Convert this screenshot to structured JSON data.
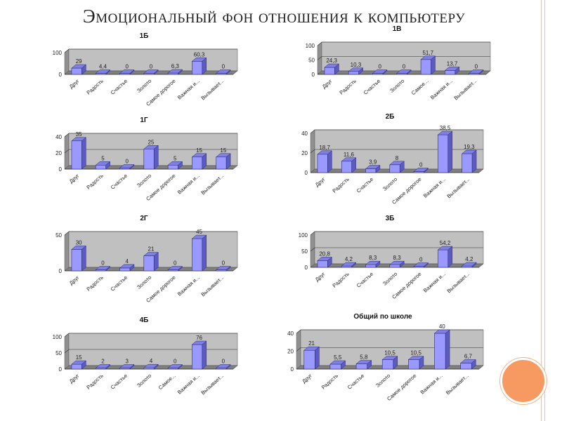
{
  "slide": {
    "title": "Эмоциональный фон отношения к компьютеру"
  },
  "colors": {
    "bar_front": "#9999ff",
    "bar_side": "#5c5cc0",
    "bar_edge": "#2a2a80",
    "wall": "#c0c0c0",
    "accent": "#f79a62"
  },
  "chart_data": [
    {
      "type": "bar",
      "title": "1Б",
      "categories": [
        "Друг",
        "Радость",
        "Счастье",
        "Золото",
        "Самое дорогое",
        "Важная и...",
        "Вызывает..."
      ],
      "values": [
        29,
        4.4,
        0,
        0,
        6.3,
        60.3,
        0
      ],
      "yticks": [
        0,
        100
      ],
      "ylim": [
        0,
        100
      ],
      "grid": true
    },
    {
      "type": "bar",
      "title": "1В",
      "categories": [
        "Друг",
        "Радость",
        "Счастье",
        "Золото",
        "Самое...",
        "Важная и...",
        "Вызывает..."
      ],
      "values": [
        24.3,
        10.3,
        0,
        0,
        51.7,
        13.7,
        0
      ],
      "yticks": [
        0,
        50,
        100
      ],
      "ylim": [
        0,
        100
      ],
      "grid": true
    },
    {
      "type": "bar",
      "title": "1Г",
      "categories": [
        "Друг",
        "Радость",
        "Счастье",
        "Золото",
        "Самое дорогое",
        "Важная и...",
        "Вызывает..."
      ],
      "values": [
        35,
        5,
        0,
        25,
        5,
        15,
        15
      ],
      "yticks": [
        0,
        20,
        40
      ],
      "ylim": [
        0,
        40
      ],
      "grid": true
    },
    {
      "type": "bar",
      "title": "2Б",
      "categories": [
        "Друг",
        "Радость",
        "Счастье",
        "Золото",
        "Самое дорогое",
        "Важная и...",
        "Вызывает..."
      ],
      "values": [
        18.7,
        11.6,
        3.9,
        8,
        0,
        38.5,
        19.3
      ],
      "yticks": [
        0,
        20,
        40
      ],
      "ylim": [
        0,
        40
      ],
      "grid": true
    },
    {
      "type": "bar",
      "title": "2Г",
      "categories": [
        "Друг",
        "Радость",
        "Счастье",
        "Золото",
        "Самое дорогое",
        "Важная и...",
        "Вызывает..."
      ],
      "values": [
        30,
        0,
        4,
        21,
        0,
        45,
        0
      ],
      "yticks": [
        0,
        50
      ],
      "ylim": [
        0,
        50
      ],
      "grid": true
    },
    {
      "type": "bar",
      "title": "3Б",
      "categories": [
        "Друг",
        "Радость",
        "Счастье",
        "Золото",
        "Самое дорогое",
        "Важная и...",
        "Вызывает..."
      ],
      "values": [
        20.8,
        4.2,
        8.3,
        8.3,
        0,
        54.2,
        4.2
      ],
      "yticks": [
        0,
        50,
        100
      ],
      "ylim": [
        0,
        100
      ],
      "grid": true
    },
    {
      "type": "bar",
      "title": "4Б",
      "categories": [
        "Друг",
        "Радость",
        "Счастье",
        "Золото",
        "Самое...",
        "Важная и...",
        "Вызывает..."
      ],
      "values": [
        15,
        2,
        3,
        4,
        0,
        76,
        0
      ],
      "yticks": [
        0,
        50,
        100
      ],
      "ylim": [
        0,
        100
      ],
      "grid": true
    },
    {
      "type": "bar",
      "title": "Общий по школе",
      "categories": [
        "Друг",
        "Радость",
        "Счастье",
        "Золото",
        "Самое дорогое",
        "Важная и...",
        "Вызывает..."
      ],
      "values": [
        21,
        5.5,
        5.8,
        10.5,
        10.5,
        40,
        6.7
      ],
      "yticks": [
        0,
        20,
        40
      ],
      "ylim": [
        0,
        40
      ],
      "grid": true
    }
  ]
}
